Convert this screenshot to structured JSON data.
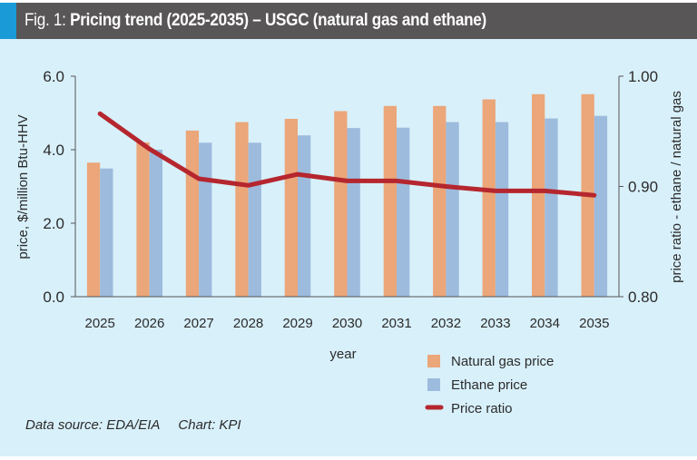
{
  "header": {
    "prefix": "Fig. 1: ",
    "title": "Pricing trend (2025-2035) – USGC (natural gas and ethane)",
    "accent_color": "#1A9AD6",
    "bar_color": "#595657"
  },
  "footer": {
    "source": "Data source: EDA/EIA",
    "chart_credit": "Chart: KPI"
  },
  "chart_data": {
    "type": "bar",
    "title": "Pricing trend (2025-2035) – USGC (natural gas and ethane)",
    "xlabel": "year",
    "ylabel": "price, $/million Btu-HHV",
    "y2label": "price ratio - ethane / natural gas",
    "categories": [
      "2025",
      "2026",
      "2027",
      "2028",
      "2029",
      "2030",
      "2031",
      "2032",
      "2033",
      "2034",
      "2035"
    ],
    "ylim": [
      0,
      6
    ],
    "yticks": [
      "0.0",
      "2.0",
      "4.0",
      "6.0"
    ],
    "y2lim": [
      0.8,
      1.0
    ],
    "y2ticks": [
      "0.80",
      "0.90",
      "1.00"
    ],
    "grid": false,
    "legend_position": "bottom-right",
    "series": [
      {
        "name": "Natural gas price",
        "type": "bar",
        "axis": "left",
        "color": "#EBA679",
        "values": [
          3.65,
          4.2,
          4.52,
          4.75,
          4.84,
          5.05,
          5.19,
          5.19,
          5.37,
          5.51,
          5.51
        ]
      },
      {
        "name": "Ethane price",
        "type": "bar",
        "axis": "left",
        "color": "#9DBBDD",
        "values": [
          3.49,
          4.0,
          4.19,
          4.19,
          4.39,
          4.59,
          4.6,
          4.75,
          4.75,
          4.85,
          4.92
        ]
      },
      {
        "name": "Price ratio",
        "type": "line",
        "axis": "right",
        "color": "#B5262E",
        "values": [
          0.966,
          0.934,
          0.907,
          0.901,
          0.911,
          0.905,
          0.905,
          0.9,
          0.896,
          0.896,
          0.892
        ]
      }
    ]
  }
}
